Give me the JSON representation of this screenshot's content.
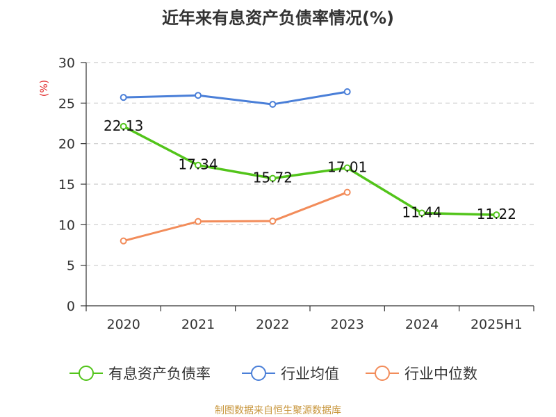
{
  "chart_data": {
    "type": "line",
    "title": "近年来有息资产负债率情况(%)",
    "ylabel": "(%)",
    "xlabel": "",
    "categories": [
      "2020",
      "2021",
      "2022",
      "2023",
      "2024",
      "2025H1"
    ],
    "ylim": [
      0,
      30
    ],
    "yticks": [
      0,
      5,
      10,
      15,
      20,
      25,
      30
    ],
    "grid": true,
    "legend_position": "bottom",
    "series": [
      {
        "name": "有息资产负债率",
        "color": "#52c41a",
        "values": [
          22.13,
          17.34,
          15.72,
          17.01,
          11.44,
          11.22
        ],
        "labels": [
          "22.13",
          "17.34",
          "15.72",
          "17.01",
          "11.44",
          "11.22"
        ]
      },
      {
        "name": "行业均值",
        "color": "#4a7fd8",
        "values": [
          25.7,
          25.95,
          24.85,
          26.4,
          null,
          null
        ]
      },
      {
        "name": "行业中位数",
        "color": "#f28c5a",
        "values": [
          8.0,
          10.4,
          10.45,
          14.0,
          null,
          null
        ]
      }
    ]
  },
  "footer": {
    "source": "制图数据来自恒生聚源数据库"
  }
}
